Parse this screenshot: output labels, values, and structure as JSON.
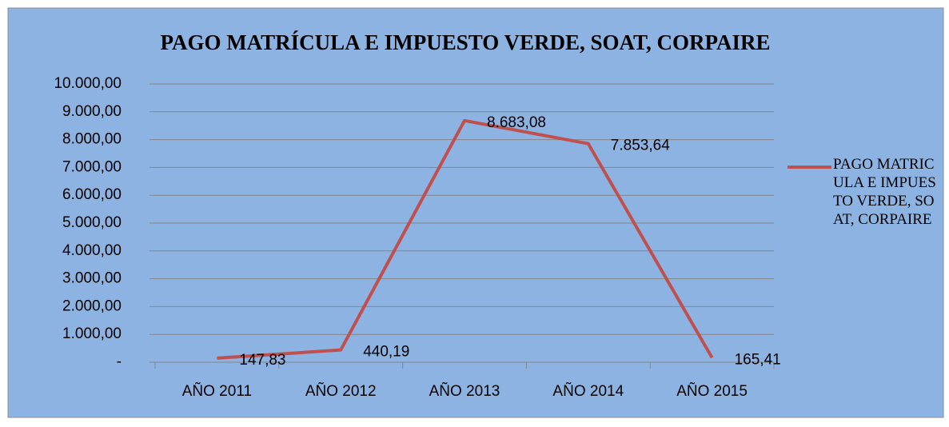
{
  "chart_data": {
    "type": "line",
    "title": "PAGO MATRÍCULA E IMPUESTO VERDE, SOAT, CORPAIRE",
    "categories": [
      "AÑO 2011",
      "AÑO 2012",
      "AÑO 2013",
      "AÑO 2014",
      "AÑO 2015"
    ],
    "series": [
      {
        "name": "PAGO MATRICULA E IMPUESTO VERDE, SOAT, CORPAIRE",
        "color": "#c0504d",
        "values": [
          147.83,
          440.19,
          8683.08,
          7853.64,
          165.41
        ],
        "value_labels": [
          "147,83",
          "440,19",
          "8.683,08",
          "7.853,64",
          "165,41"
        ]
      }
    ],
    "ylim": [
      0,
      10000
    ],
    "yticks": [
      {
        "value": 0,
        "label": "-"
      },
      {
        "value": 1000,
        "label": "1.000,00"
      },
      {
        "value": 2000,
        "label": "2.000,00"
      },
      {
        "value": 3000,
        "label": "3.000,00"
      },
      {
        "value": 4000,
        "label": "4.000,00"
      },
      {
        "value": 5000,
        "label": "5.000,00"
      },
      {
        "value": 6000,
        "label": "6.000,00"
      },
      {
        "value": 7000,
        "label": "7.000,00"
      },
      {
        "value": 8000,
        "label": "8.000,00"
      },
      {
        "value": 9000,
        "label": "9.000,00"
      },
      {
        "value": 10000,
        "label": "10.000,00"
      }
    ],
    "grid": true,
    "legend": "right"
  }
}
